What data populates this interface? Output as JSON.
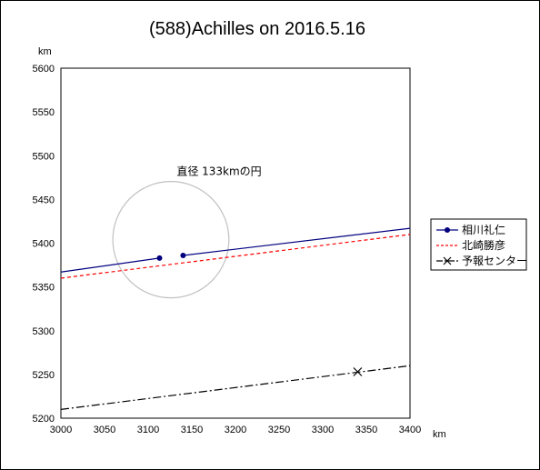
{
  "chart_data": {
    "type": "line",
    "title": "(588)Achilles on 2016.5.16",
    "xunit": "km",
    "yunit": "km",
    "xlim": [
      3000,
      3400
    ],
    "ylim": [
      5200,
      5600
    ],
    "xticks": [
      3000,
      3050,
      3100,
      3150,
      3200,
      3250,
      3300,
      3350,
      3400
    ],
    "yticks": [
      5200,
      5250,
      5300,
      5350,
      5400,
      5450,
      5500,
      5550,
      5600
    ],
    "grid": false,
    "legend_position": "right",
    "annotation": {
      "text": "直径 133kmの円",
      "x": 3150,
      "y": 5478
    },
    "circle": {
      "center": [
        3126,
        5404
      ],
      "diameter": 133,
      "color": "#c0c0c0"
    },
    "series": [
      {
        "name": "相川礼仁",
        "style": "solid",
        "color": "#00007f",
        "marker": "dot",
        "segments": [
          [
            [
              3000,
              5367
            ],
            [
              3113,
              5383
            ]
          ],
          [
            [
              3140,
              5386
            ],
            [
              3400,
              5417
            ]
          ]
        ],
        "markers": [
          [
            3113,
            5383
          ],
          [
            3140,
            5386
          ]
        ]
      },
      {
        "name": "北崎勝彦",
        "style": "dashed",
        "color": "#ff0000",
        "marker": "none",
        "segments": [
          [
            [
              3000,
              5360
            ],
            [
              3400,
              5410
            ]
          ]
        ],
        "markers": []
      },
      {
        "name": "予報センター",
        "style": "dashdot",
        "color": "#000000",
        "marker": "x",
        "segments": [
          [
            [
              3000,
              5210
            ],
            [
              3400,
              5260
            ]
          ]
        ],
        "markers": [
          [
            3340,
            5253
          ]
        ]
      }
    ]
  }
}
